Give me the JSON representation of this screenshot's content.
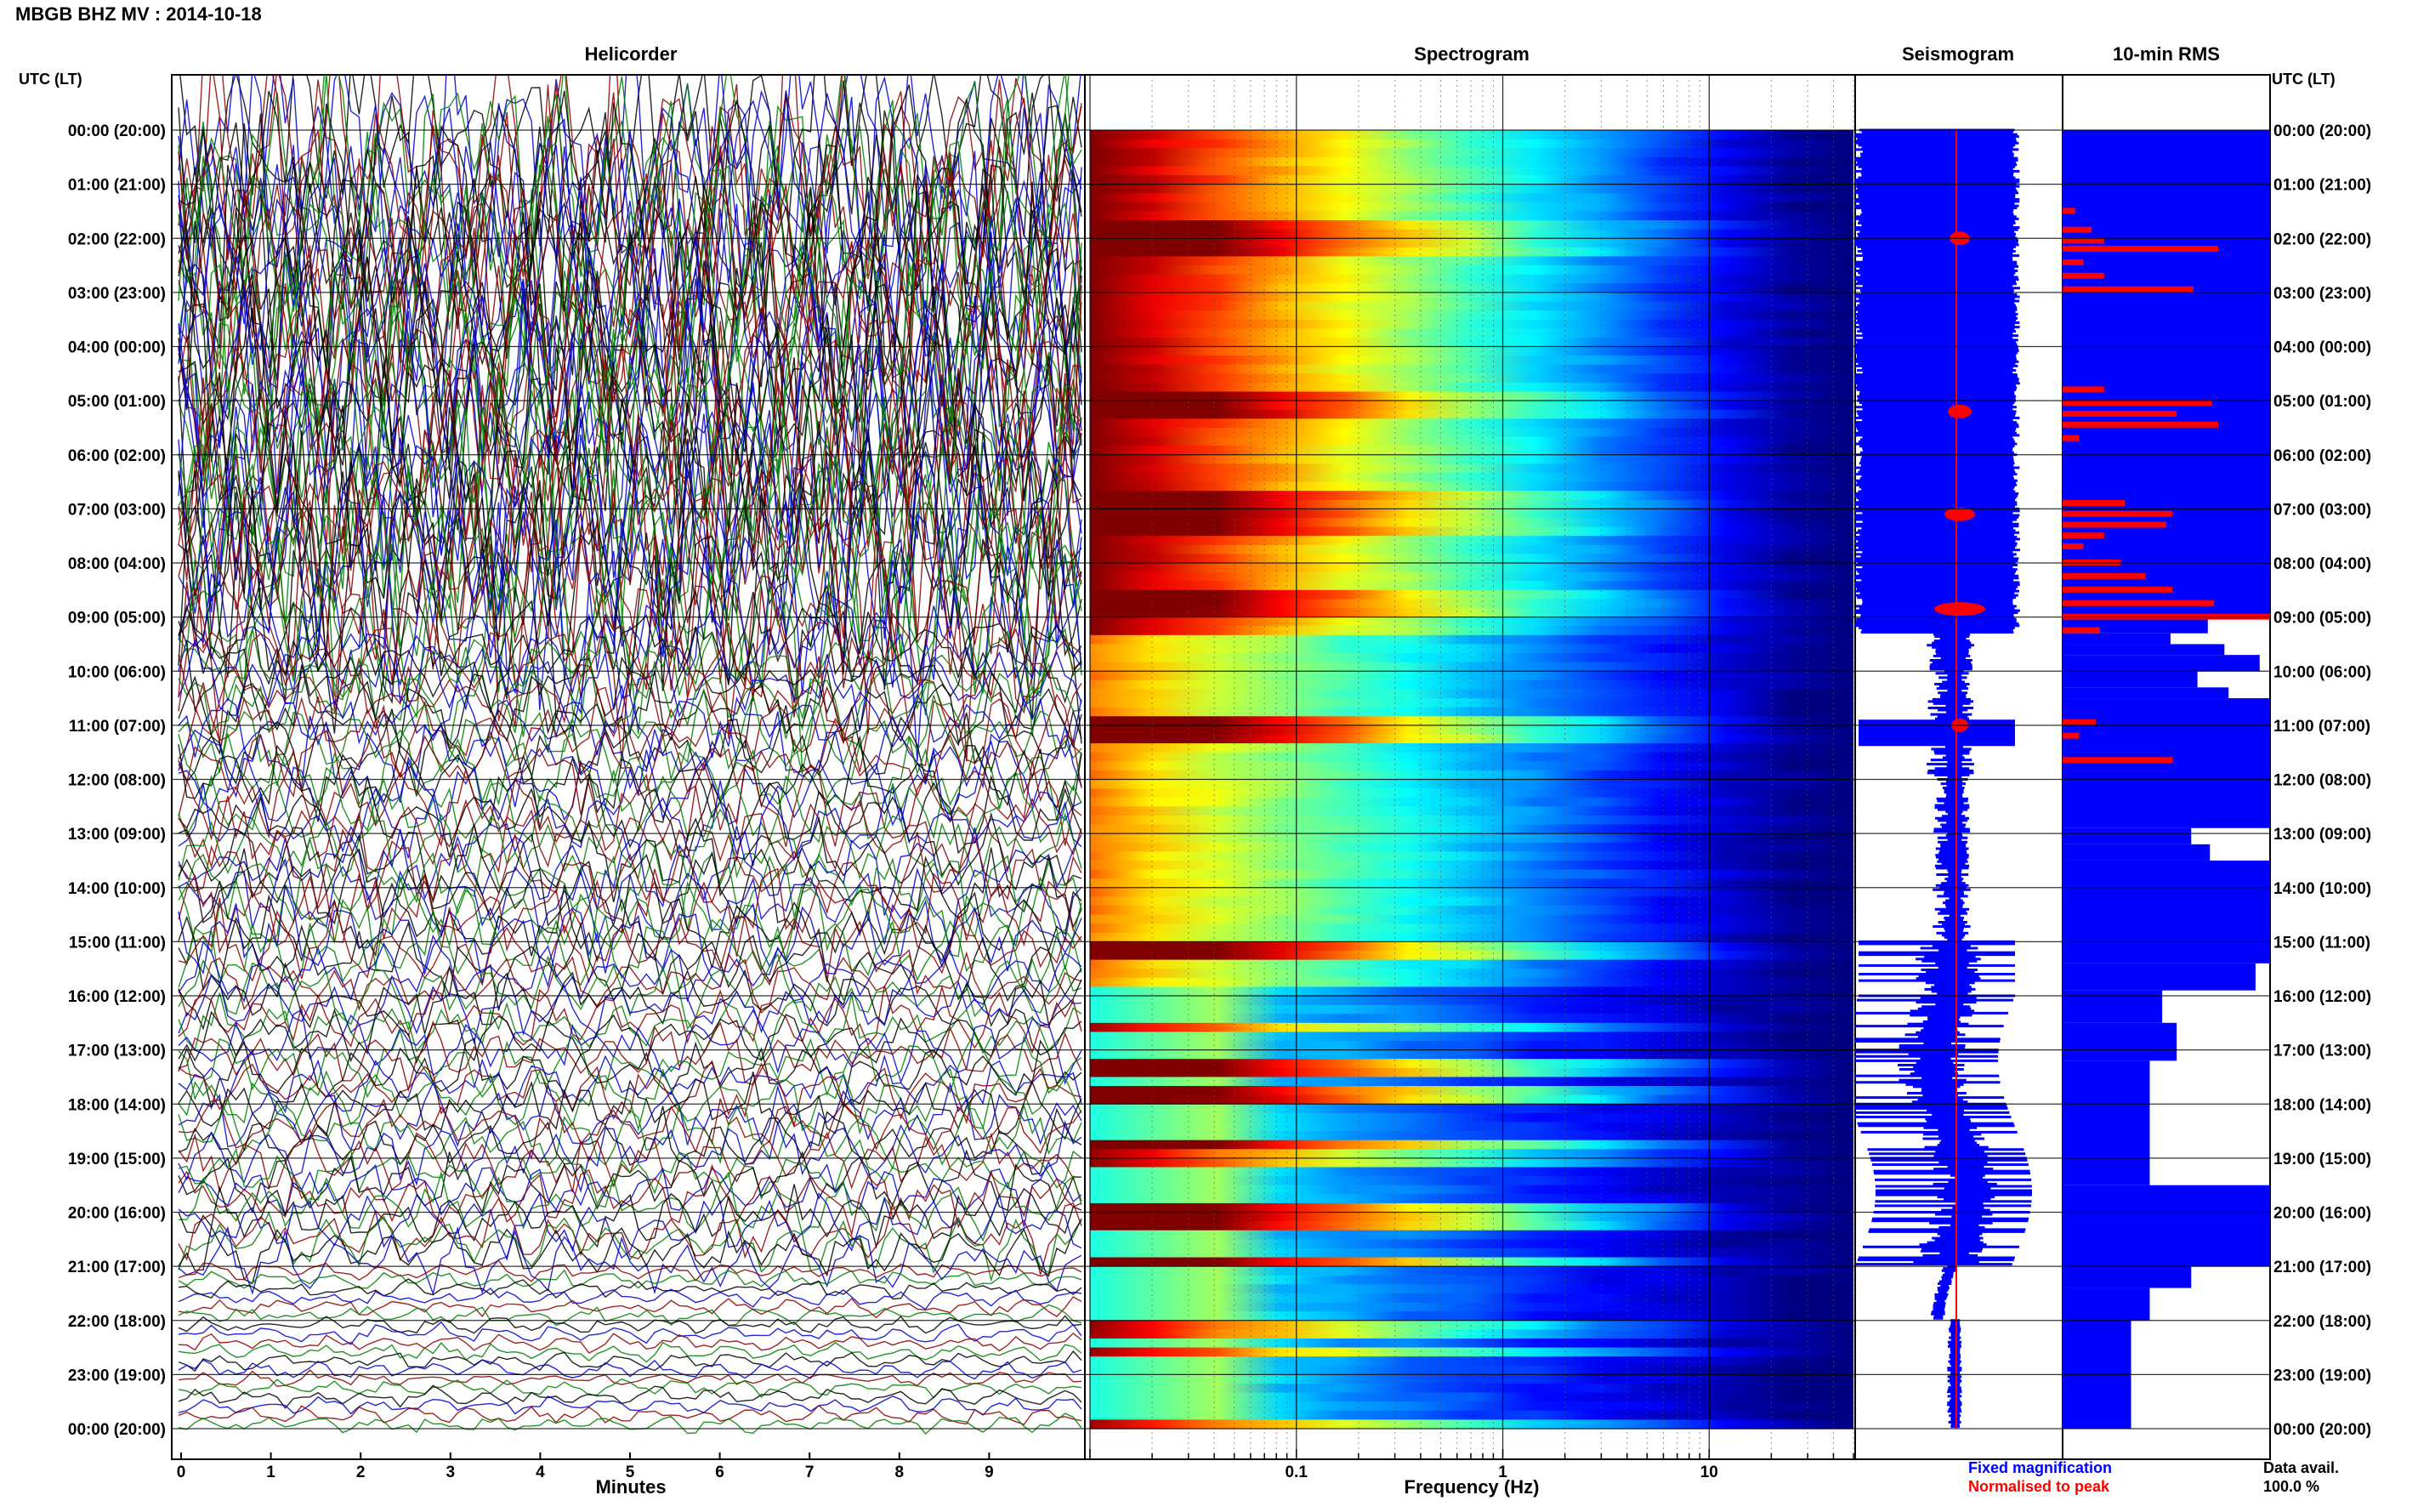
{
  "header": {
    "title": "MBGB BHZ MV : 2014-10-18"
  },
  "left_axis": {
    "label": "UTC (LT)"
  },
  "right_axis": {
    "label": "UTC (LT)"
  },
  "panels": {
    "helicorder": {
      "title": "Helicorder",
      "xlabel": "Minutes"
    },
    "spectrogram": {
      "title": "Spectrogram",
      "xlabel": "Frequency (Hz)"
    },
    "seismogram": {
      "title": "Seismogram"
    },
    "rms": {
      "title": "10-min RMS"
    }
  },
  "legend": {
    "fixed": {
      "label": "Fixed magnification",
      "color": "#0000ff"
    },
    "normalised": {
      "label": "Normalised to peak",
      "color": "#ff0000"
    }
  },
  "data_avail": {
    "label": "Data avail.",
    "value": "100.0 %"
  },
  "chart_data": {
    "type": "heatmap",
    "time_labels": [
      "00:00 (20:00)",
      "01:00 (21:00)",
      "02:00 (22:00)",
      "03:00 (23:00)",
      "04:00 (00:00)",
      "05:00 (01:00)",
      "06:00 (02:00)",
      "07:00 (03:00)",
      "08:00 (04:00)",
      "09:00 (05:00)",
      "10:00 (06:00)",
      "11:00 (07:00)",
      "12:00 (08:00)",
      "13:00 (09:00)",
      "14:00 (10:00)",
      "15:00 (11:00)",
      "16:00 (12:00)",
      "17:00 (13:00)",
      "18:00 (14:00)",
      "19:00 (15:00)",
      "20:00 (16:00)",
      "21:00 (17:00)",
      "22:00 (18:00)",
      "23:00 (19:00)",
      "00:00 (20:00)"
    ],
    "minute_ticks": [
      "0",
      "1",
      "2",
      "3",
      "4",
      "5",
      "6",
      "7",
      "8",
      "9"
    ],
    "frequency_ticks": [
      "0.1",
      "1",
      "10"
    ],
    "helicorder": {
      "xlim": [
        0,
        10
      ],
      "rows": 144,
      "colors": [
        "#000000",
        "#0000cc",
        "#8b0000",
        "#008000"
      ]
    },
    "spectrogram": {
      "xlim_hz": [
        0.01,
        50
      ],
      "log_x": true,
      "rows": 144,
      "strong_intervals_hours": [
        [
          1.8,
          2.2
        ],
        [
          4.9,
          5.3
        ],
        [
          6.7,
          7.4
        ],
        [
          8.6,
          8.9
        ],
        [
          10.9,
          11.3
        ],
        [
          15.0,
          15.3
        ],
        [
          17.3,
          17.4
        ],
        [
          17.75,
          17.9
        ],
        [
          18.7,
          18.8
        ],
        [
          19.9,
          20.2
        ],
        [
          20.9,
          21.0
        ]
      ],
      "quiet_from_hour": 15.8
    },
    "rms_profile": {
      "units": "relative",
      "blue_segments": [
        {
          "from": 0,
          "to": 9.0,
          "value": 1.0
        },
        {
          "from": 9.0,
          "to": 9.3,
          "value": 0.7
        },
        {
          "from": 9.3,
          "to": 9.5,
          "value": 0.52
        },
        {
          "from": 9.5,
          "to": 9.7,
          "value": 0.78
        },
        {
          "from": 9.7,
          "to": 10.0,
          "value": 0.95
        },
        {
          "from": 10.0,
          "to": 10.3,
          "value": 0.65
        },
        {
          "from": 10.3,
          "to": 10.5,
          "value": 0.8
        },
        {
          "from": 10.5,
          "to": 12.9,
          "value": 1.0
        },
        {
          "from": 12.9,
          "to": 13.2,
          "value": 0.62
        },
        {
          "from": 13.2,
          "to": 13.5,
          "value": 0.71
        },
        {
          "from": 13.5,
          "to": 15.4,
          "value": 1.0
        },
        {
          "from": 15.4,
          "to": 15.9,
          "value": 0.93
        },
        {
          "from": 15.9,
          "to": 16.5,
          "value": 0.48
        },
        {
          "from": 16.5,
          "to": 17.2,
          "value": 0.55
        },
        {
          "from": 17.2,
          "to": 19.5,
          "value": 0.42
        },
        {
          "from": 19.5,
          "to": 21.0,
          "value": 1.0
        },
        {
          "from": 21.0,
          "to": 21.4,
          "value": 0.62
        },
        {
          "from": 21.4,
          "to": 22.0,
          "value": 0.42
        },
        {
          "from": 22.0,
          "to": 24.0,
          "value": 0.33
        }
      ],
      "red_bars": [
        {
          "hour": 1.5,
          "value": 0.06
        },
        {
          "hour": 1.85,
          "value": 0.14
        },
        {
          "hour": 2.05,
          "value": 0.2
        },
        {
          "hour": 2.2,
          "value": 0.75
        },
        {
          "hour": 2.45,
          "value": 0.1
        },
        {
          "hour": 2.7,
          "value": 0.2
        },
        {
          "hour": 2.95,
          "value": 0.63
        },
        {
          "hour": 4.8,
          "value": 0.2
        },
        {
          "hour": 5.05,
          "value": 0.72
        },
        {
          "hour": 5.25,
          "value": 0.55
        },
        {
          "hour": 5.45,
          "value": 0.75
        },
        {
          "hour": 5.7,
          "value": 0.08
        },
        {
          "hour": 6.9,
          "value": 0.3
        },
        {
          "hour": 7.1,
          "value": 0.53
        },
        {
          "hour": 7.3,
          "value": 0.5
        },
        {
          "hour": 7.5,
          "value": 0.2
        },
        {
          "hour": 7.7,
          "value": 0.1
        },
        {
          "hour": 8.0,
          "value": 0.28
        },
        {
          "hour": 8.25,
          "value": 0.4
        },
        {
          "hour": 8.5,
          "value": 0.53
        },
        {
          "hour": 8.75,
          "value": 0.73
        },
        {
          "hour": 9.0,
          "value": 1.0
        },
        {
          "hour": 9.25,
          "value": 0.18
        },
        {
          "hour": 10.95,
          "value": 0.16
        },
        {
          "hour": 11.2,
          "value": 0.08
        },
        {
          "hour": 11.65,
          "value": 0.53
        }
      ]
    },
    "seismogram": {
      "fixed_color": "#0000ff",
      "normalised_color": "#ff0000"
    }
  }
}
